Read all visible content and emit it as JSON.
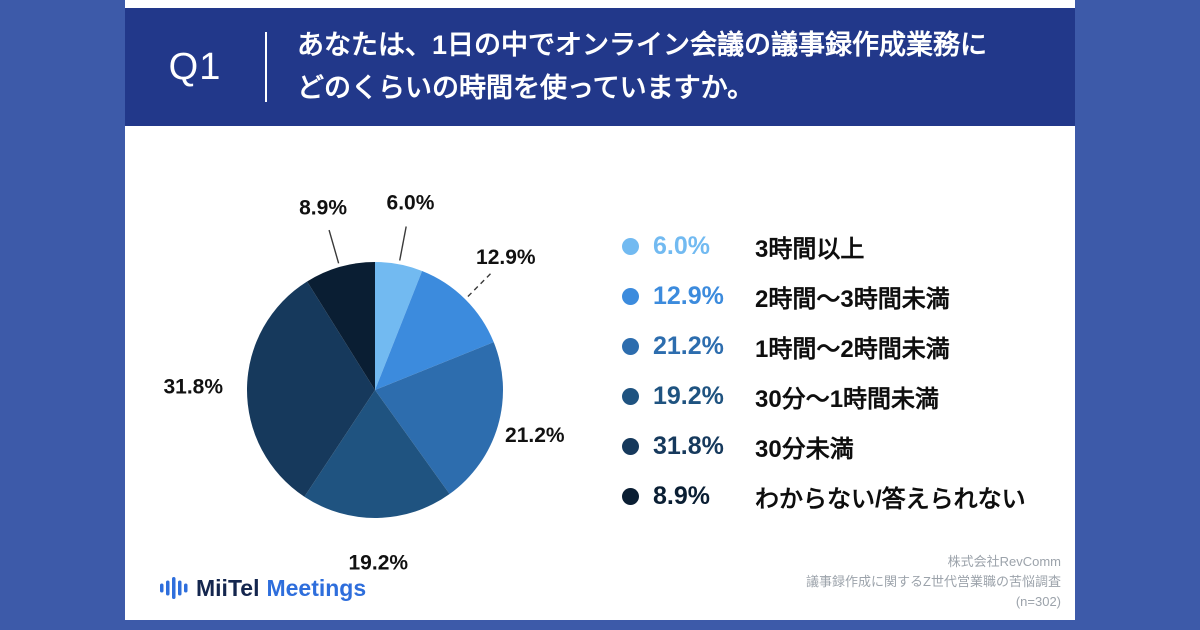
{
  "frame": {
    "color": "#3D5AA9"
  },
  "header": {
    "background": "#22388A",
    "question_number": "Q1",
    "question_line1": "あなたは、1日の中でオンライン会議の議事録作成業務に",
    "question_line2": "どのくらいの時間を使っていますか。"
  },
  "chart_data": {
    "type": "pie",
    "title": "あなたは、1日の中でオンライン会議の議事録作成業務にどのくらいの時間を使っていますか。",
    "unit": "%",
    "start_angle_deg": 0,
    "direction": "clockwise",
    "legend_position": "right",
    "slices": [
      {
        "label": "3時間以上",
        "value": 6.0,
        "color": "#72BAF1"
      },
      {
        "label": "2時間〜3時間未満",
        "value": 12.9,
        "color": "#3C8BDD"
      },
      {
        "label": "1時間〜2時間未満",
        "value": 21.2,
        "color": "#2D6DAE"
      },
      {
        "label": "30分〜1時間未満",
        "value": 19.2,
        "color": "#1F5380"
      },
      {
        "label": "30分未満",
        "value": 31.8,
        "color": "#16395C"
      },
      {
        "label": "わからない/答えられない",
        "value": 8.9,
        "color": "#0A1E33"
      }
    ]
  },
  "footer": {
    "logo": {
      "icon": "audio-bars-icon",
      "brand": "MiiTel",
      "product": "Meetings",
      "accent": "#2E6EDC"
    },
    "source_lines": [
      "株式会社RevComm",
      "議事録作成に関するZ世代営業職の苦悩調査",
      "(n=302)"
    ]
  }
}
